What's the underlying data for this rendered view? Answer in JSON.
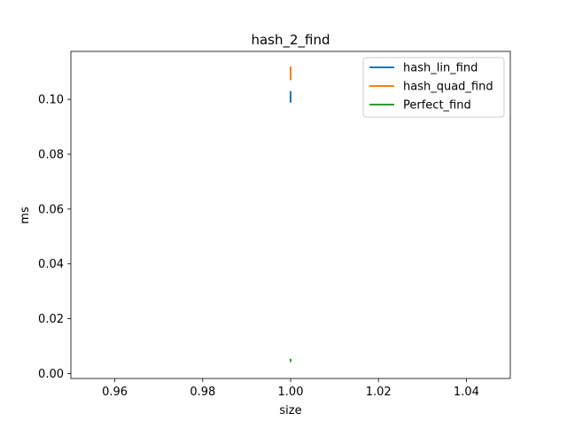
{
  "chart_data": {
    "type": "line",
    "title": "hash_2_find",
    "xlabel": "size",
    "ylabel": "ms",
    "xlim": [
      0.95,
      1.05
    ],
    "ylim": [
      -0.0018,
      0.1175
    ],
    "x_ticks": [
      0.96,
      0.98,
      1.0,
      1.02,
      1.04
    ],
    "x_tick_labels": [
      "0.96",
      "0.98",
      "1.00",
      "1.02",
      "1.04"
    ],
    "y_ticks": [
      0.0,
      0.02,
      0.04,
      0.06,
      0.08,
      0.1
    ],
    "y_tick_labels": [
      "0.00",
      "0.02",
      "0.04",
      "0.06",
      "0.08",
      "0.10"
    ],
    "grid": false,
    "legend_position": "top-right",
    "series": [
      {
        "name": "hash_lin_find",
        "color": "#1f77b4",
        "x": [
          1.0,
          1.0
        ],
        "y": [
          0.0988,
          0.103
        ]
      },
      {
        "name": "hash_quad_find",
        "color": "#ff7f0e",
        "x": [
          1.0,
          1.0
        ],
        "y": [
          0.107,
          0.112
        ]
      },
      {
        "name": "Perfect_find",
        "color": "#2ca02c",
        "x": [
          1.0,
          1.0
        ],
        "y": [
          0.0042,
          0.0054
        ]
      }
    ]
  }
}
